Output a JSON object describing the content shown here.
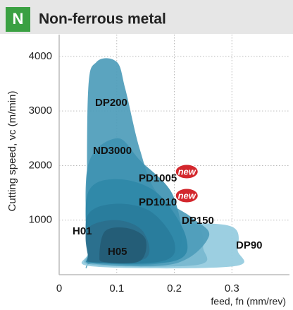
{
  "header": {
    "badge": "N",
    "title": "Non-ferrous metal"
  },
  "chart_data": {
    "type": "region",
    "ylabel": "Cutting speed, vc (m/min)",
    "xlabel": "feed, fn (mm/rev)",
    "xlim": [
      0,
      0.4
    ],
    "ylim": [
      0,
      4400
    ],
    "xticks": [
      0,
      0.1,
      0.2,
      0.3
    ],
    "yticks": [
      1000,
      2000,
      3000,
      4000
    ],
    "grid": true,
    "new_badge": "new",
    "regions": [
      {
        "name": "DP90",
        "color": "#94cbde",
        "new": false,
        "x": [
          0.05,
          0.06,
          0.3,
          0.31,
          0.3,
          0.2,
          0.1,
          0.05
        ],
        "y": [
          400,
          150,
          150,
          450,
          880,
          950,
          1000,
          900
        ]
      },
      {
        "name": "DP150",
        "color": "#78b8cf",
        "new": false,
        "x": [
          0.05,
          0.06,
          0.24,
          0.25,
          0.24,
          0.18,
          0.1,
          0.05
        ],
        "y": [
          400,
          180,
          180,
          500,
          900,
          1000,
          1050,
          950
        ]
      },
      {
        "name": "DP200",
        "color": "#4d9cba",
        "new": false,
        "x": [
          0.05,
          0.05,
          0.065,
          0.1,
          0.115,
          0.14,
          0.17,
          0.23,
          0.26,
          0.2,
          0.06
        ],
        "y": [
          400,
          3300,
          3900,
          3900,
          3400,
          2300,
          1500,
          1050,
          700,
          200,
          200
        ]
      },
      {
        "name": "ND3000",
        "color": "#3f93b2",
        "new": false,
        "x": [
          0.05,
          0.05,
          0.1,
          0.14,
          0.2,
          0.2,
          0.06
        ],
        "y": [
          400,
          2000,
          2500,
          2100,
          1400,
          300,
          220
        ]
      },
      {
        "name": "PD1005",
        "color": "#2f88a8",
        "new": true,
        "x": [
          0.05,
          0.05,
          0.1,
          0.17,
          0.22,
          0.2,
          0.06
        ],
        "y": [
          400,
          1500,
          1750,
          1500,
          700,
          250,
          220
        ]
      },
      {
        "name": "PD1010",
        "color": "#297c9c",
        "new": true,
        "x": [
          0.05,
          0.05,
          0.1,
          0.16,
          0.2,
          0.18,
          0.06
        ],
        "y": [
          400,
          1100,
          1300,
          1150,
          600,
          250,
          220
        ]
      },
      {
        "name": "H01",
        "color": "#2b6f8d",
        "new": false,
        "x": [
          0.05,
          0.05,
          0.1,
          0.145,
          0.15,
          0.06
        ],
        "y": [
          350,
          850,
          1000,
          800,
          300,
          230
        ]
      },
      {
        "name": "H05",
        "color": "#245b75",
        "new": false,
        "x": [
          0.07,
          0.08,
          0.12,
          0.15,
          0.14,
          0.08
        ],
        "y": [
          350,
          800,
          850,
          650,
          250,
          230
        ]
      }
    ]
  }
}
